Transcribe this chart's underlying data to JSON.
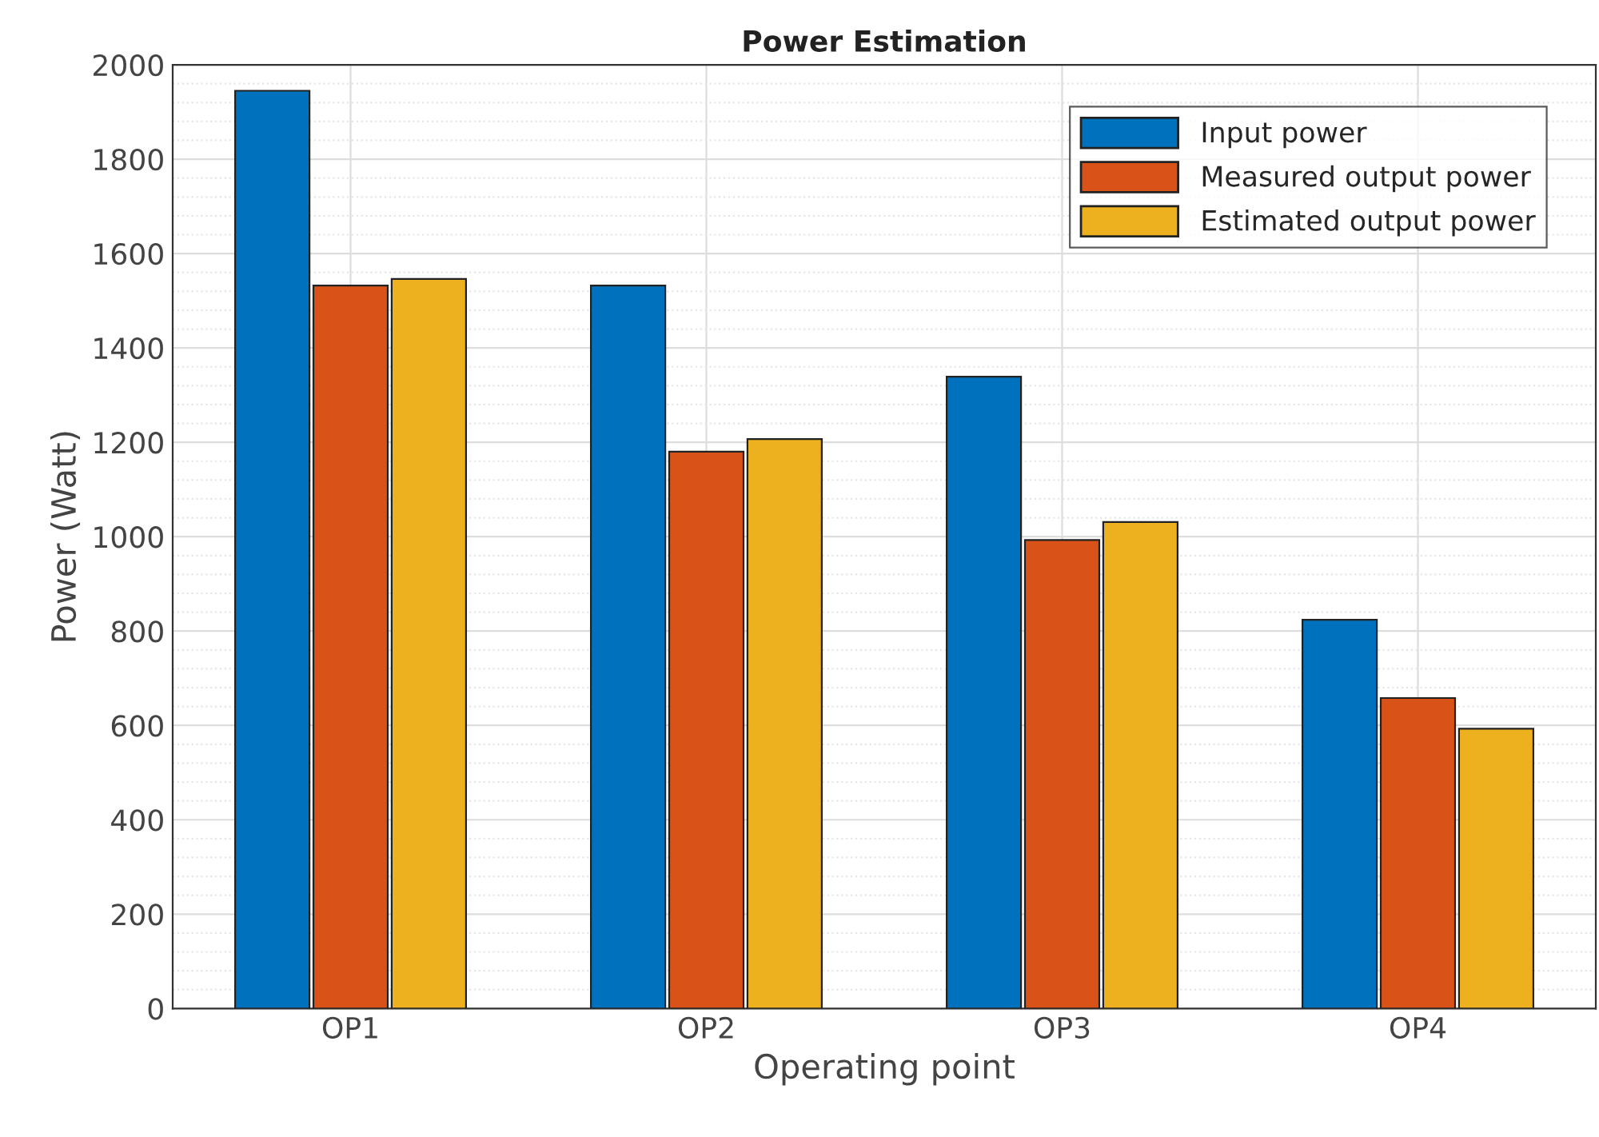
{
  "chart_data": {
    "type": "bar",
    "title": "Power Estimation",
    "xlabel": "Operating point",
    "ylabel": "Power (Watt)",
    "categories": [
      "OP1",
      "OP2",
      "OP3",
      "OP4"
    ],
    "series": [
      {
        "name": "Input power",
        "color": "#0072bd",
        "values": [
          1945,
          1532,
          1339,
          824
        ]
      },
      {
        "name": "Measured output power",
        "color": "#d95319",
        "values": [
          1532,
          1180,
          993,
          658
        ]
      },
      {
        "name": "Estimated output power",
        "color": "#edb120",
        "values": [
          1546,
          1207,
          1031,
          593
        ]
      }
    ],
    "ylim": [
      0,
      2000
    ],
    "yticks": [
      0,
      200,
      400,
      600,
      800,
      1000,
      1200,
      1400,
      1600,
      1800,
      2000
    ],
    "grid": true,
    "legend": "top right"
  }
}
